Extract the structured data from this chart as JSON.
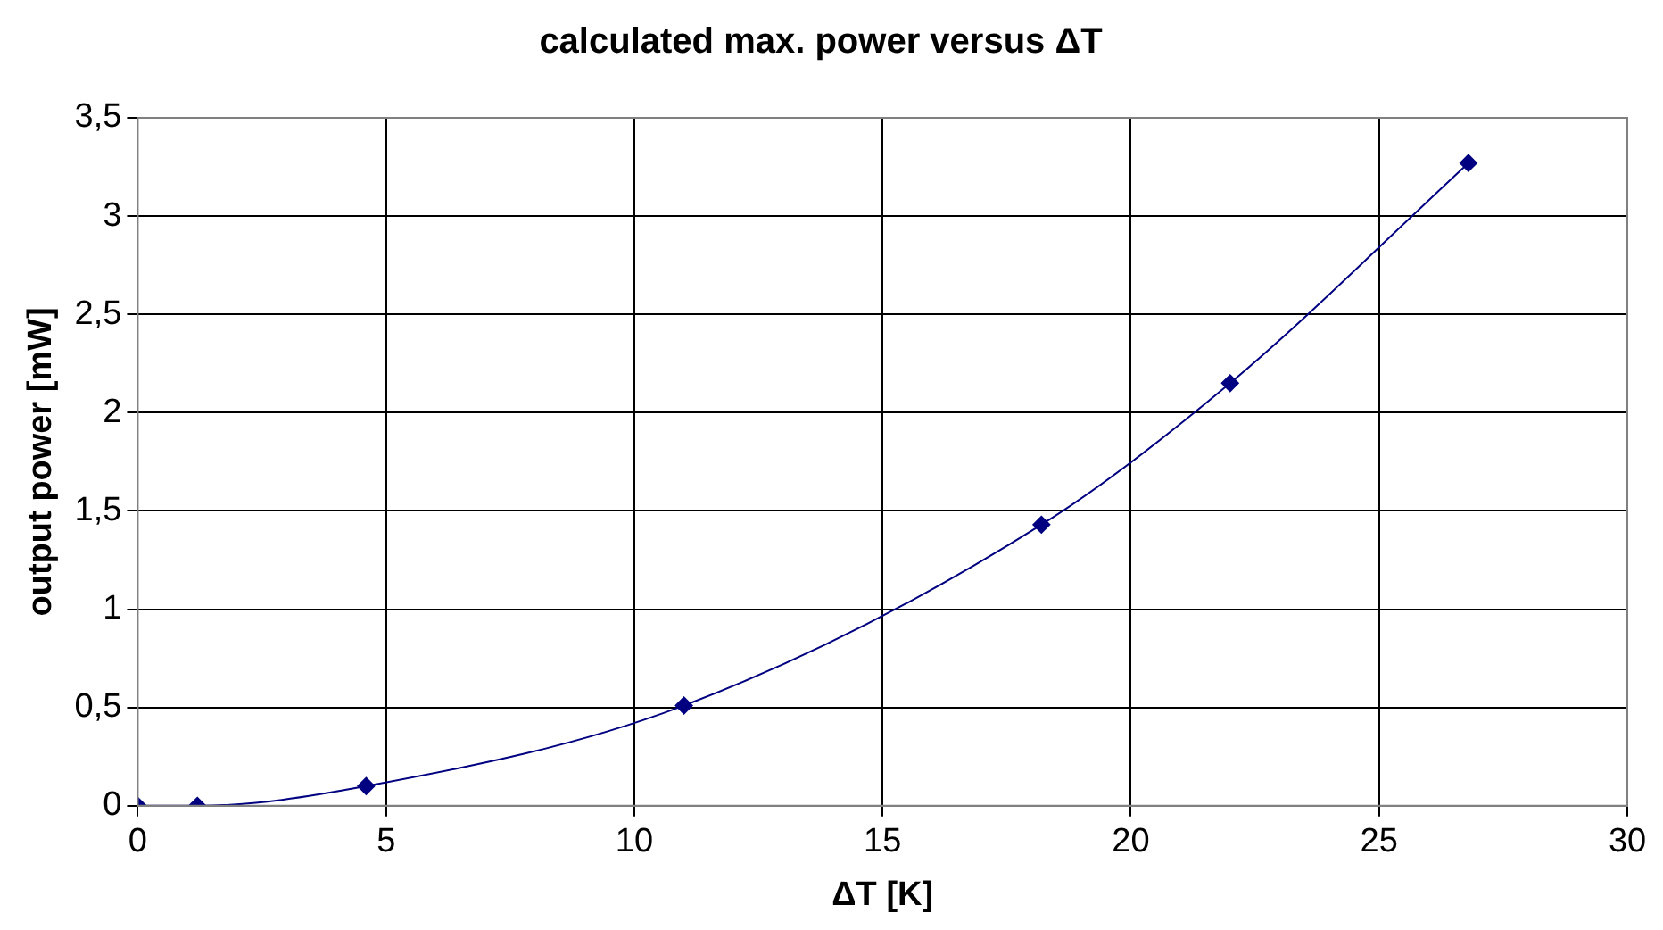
{
  "chart_data": {
    "type": "line",
    "title": "calculated max. power versus ΔT",
    "xlabel": "ΔT [K]",
    "ylabel": "output power [mW]",
    "x": [
      0,
      1.2,
      4.6,
      11,
      18.2,
      22,
      26.8
    ],
    "series": [
      {
        "color": "#000080",
        "values": [
          0,
          0,
          0.1,
          0.51,
          1.43,
          2.15,
          3.27
        ]
      }
    ],
    "xlim": [
      0,
      30
    ],
    "xticks": [
      0,
      5,
      10,
      15,
      20,
      25,
      30
    ],
    "ylim": [
      0,
      3.5
    ],
    "yticks": [
      0,
      {
        "value": 0.5,
        "label": "0,5"
      },
      1,
      {
        "value": 1.5,
        "label": "1,5"
      },
      2,
      {
        "value": 2.5,
        "label": "2,5"
      },
      3,
      {
        "value": 3.5,
        "label": "3,5"
      }
    ],
    "grid": true,
    "legend": false,
    "marker": "diamond",
    "line_style": "solid"
  }
}
